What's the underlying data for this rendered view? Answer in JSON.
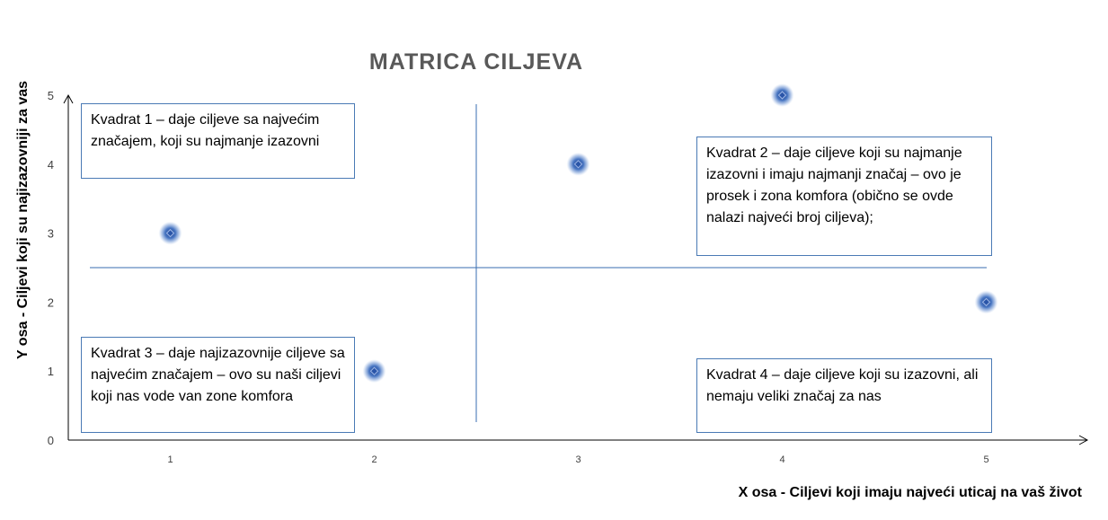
{
  "chart_data": {
    "type": "scatter",
    "title": "MATRICA CILJEVA",
    "xlabel": "X osa - Ciljevi koji imaju najveći uticaj na vaš život",
    "ylabel": "Y osa - Ciljevi koji su najizazovniji za vas",
    "x_ticks": [
      "1",
      "2",
      "3",
      "4",
      "5"
    ],
    "y_ticks": [
      "0",
      "1",
      "2",
      "3",
      "4",
      "5"
    ],
    "xlim": [
      0.5,
      5.5
    ],
    "ylim": [
      0,
      5
    ],
    "points": [
      {
        "x": 1,
        "y": 3
      },
      {
        "x": 2,
        "y": 1
      },
      {
        "x": 3,
        "y": 4
      },
      {
        "x": 4,
        "y": 5
      },
      {
        "x": 5,
        "y": 2
      }
    ],
    "divider_x": 2.5,
    "divider_y": 2.5,
    "grid": false,
    "colors": {
      "marker": "#3f6fbf",
      "box_border": "#4a7ab5",
      "divider": "#3a6db0",
      "axis": "#000000",
      "title": "#595959"
    }
  },
  "quadrants": {
    "q1": "Kvadrat 1 – daje ciljeve sa najvećim značajem, koji su najmanje izazovni",
    "q2": "Kvadrat 2 – daje ciljeve koji su najmanje izazovni i imaju najmanji značaj – ovo je prosek i zona komfora (obično se ovde nalazi najveći broj ciljeva);",
    "q3": "Kvadrat 3 – daje najizazovnije ciljeve sa najvećim značajem – ovo su naši ciljevi koji nas vode van zone komfora",
    "q4": "Kvadrat 4 – daje ciljeve koji su izazovni, ali nemaju veliki značaj za nas"
  }
}
